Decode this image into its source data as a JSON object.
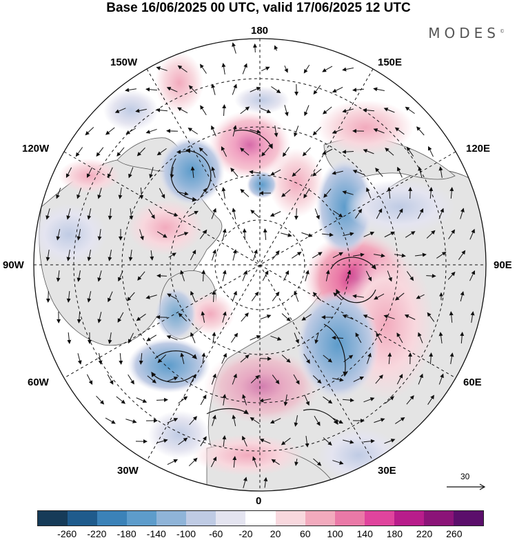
{
  "header": {
    "title": "Base 16/06/2025 00 UTC, valid 17/06/2025 12 UTC",
    "brand": "MODES",
    "brand_mark": "©"
  },
  "map": {
    "projection": "north-polar-stereographic",
    "longitude_labels": {
      "top": "180",
      "upper_left": "150W",
      "upper_right": "150E",
      "left_upper": "120W",
      "right_upper": "120E",
      "left": "90W",
      "right": "90E",
      "left_lower": "60W",
      "right_lower": "60E",
      "lower_left": "30W",
      "lower_right": "30E",
      "bottom": "0"
    },
    "reference_vector": "30",
    "colors": {
      "land_fill": "#e4e4e4",
      "coastline": "#444444",
      "gridline": "#111111"
    },
    "anomaly_centers": [
      {
        "name": "pos-90E",
        "level": 180
      },
      {
        "name": "pos-north-pacific",
        "level": 100
      },
      {
        "name": "pos-europe",
        "level": 80
      },
      {
        "name": "pos-arctic-siberia",
        "level": 60
      },
      {
        "name": "neg-alaska-gulf",
        "level": -140
      },
      {
        "name": "neg-west-siberia",
        "level": -140
      },
      {
        "name": "neg-north-atlantic",
        "level": -100
      },
      {
        "name": "neg-north-asia",
        "level": -100
      }
    ]
  },
  "colorbar": {
    "ticks": [
      "-260",
      "-220",
      "-180",
      "-140",
      "-100",
      "-60",
      "-20",
      "20",
      "60",
      "100",
      "140",
      "180",
      "220",
      "260"
    ],
    "colors": [
      "#163b58",
      "#1f5b8c",
      "#3b82b8",
      "#5d9ccb",
      "#8fb4d8",
      "#bfcbe4",
      "#e4e4f0",
      "#ffffff",
      "#f8d8de",
      "#f2aabd",
      "#ea79a7",
      "#e0449d",
      "#b81d8b",
      "#8b1478",
      "#5b0f6b"
    ]
  }
}
